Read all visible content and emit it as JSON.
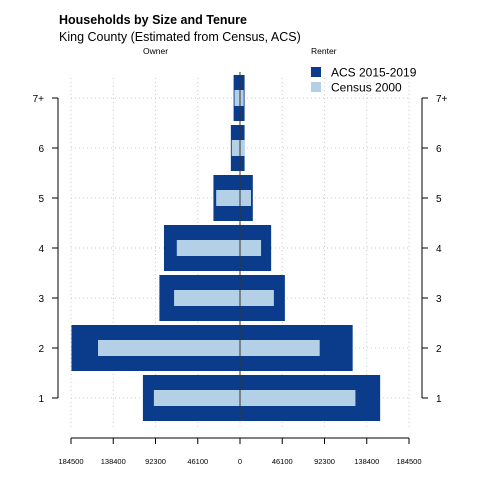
{
  "chart_data": {
    "type": "bar",
    "title": "Households by Size and Tenure",
    "subtitle": "King County (Estimated from Census, ACS)",
    "left_label": "Owner",
    "right_label": "Renter",
    "categories": [
      "1",
      "2",
      "3",
      "4",
      "5",
      "6",
      "7+"
    ],
    "x_ticks": [
      "184500",
      "138400",
      "92300",
      "46100",
      "0",
      "46100",
      "92300",
      "138400",
      "184500"
    ],
    "xlim": [
      -184500,
      184500
    ],
    "series": [
      {
        "name": "ACS 2015-2019",
        "color": "#0b3c8c",
        "owner": [
          106000,
          184000,
          88000,
          83000,
          29000,
          10000,
          7000
        ],
        "renter": [
          153000,
          123000,
          49000,
          34000,
          14000,
          5000,
          5000
        ]
      },
      {
        "name": "Census 2000",
        "color": "#b3d0e6",
        "owner": [
          94000,
          155000,
          72000,
          69000,
          26000,
          9000,
          6000
        ],
        "renter": [
          126000,
          87000,
          37000,
          23000,
          12000,
          5000,
          4000
        ]
      }
    ],
    "grid": true,
    "legend_position": "top-right"
  }
}
